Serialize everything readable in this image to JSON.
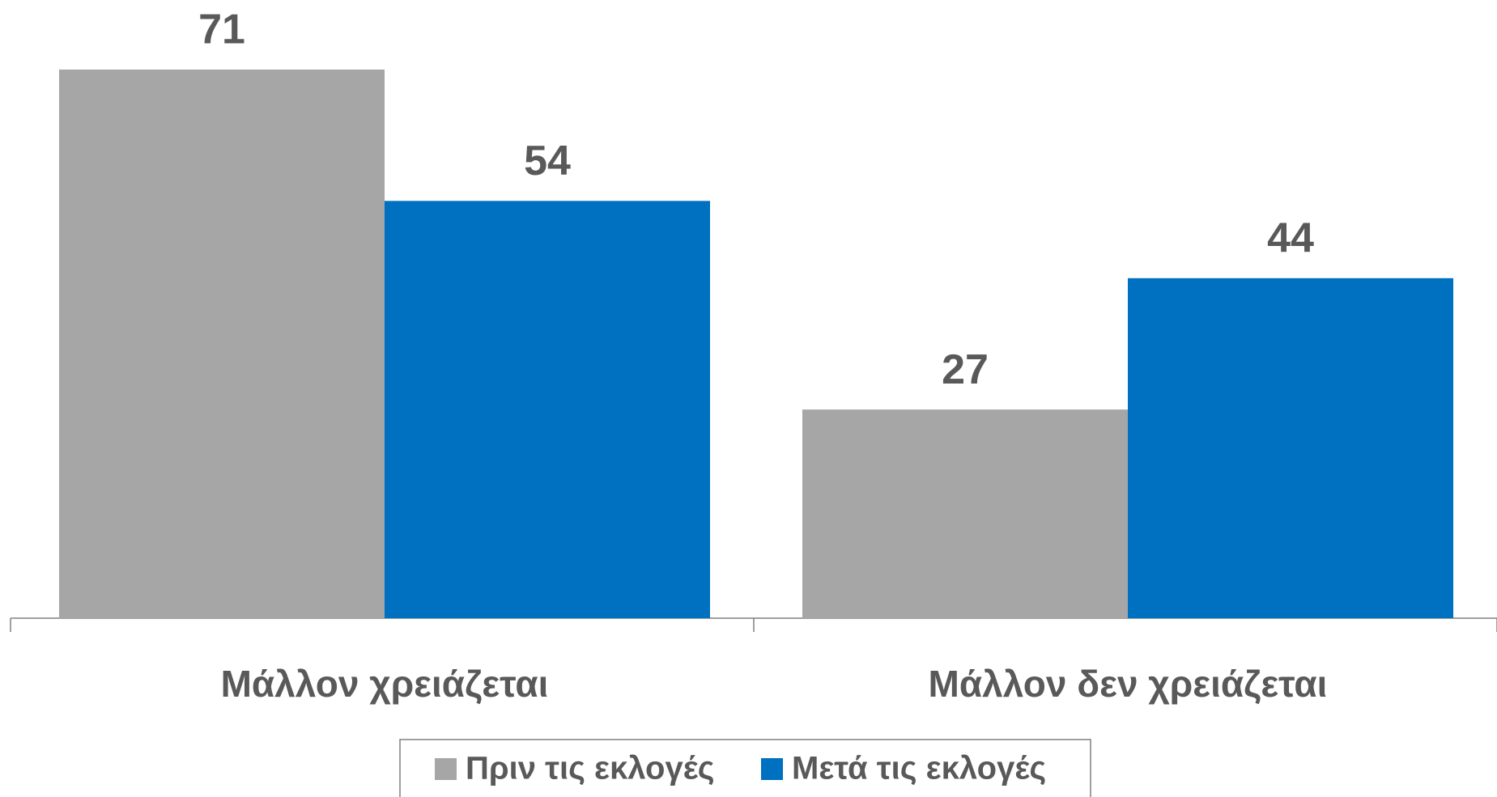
{
  "chart_data": {
    "type": "bar",
    "categories": [
      "Μάλλον χρειάζεται",
      "Μάλλον δεν χρειάζεται"
    ],
    "series": [
      {
        "name": "Πριν τις εκλογές",
        "color": "#a6a6a6",
        "values": [
          71,
          27
        ]
      },
      {
        "name": "Μετά τις εκλογές",
        "color": "#0070c0",
        "values": [
          54,
          44
        ]
      }
    ],
    "legend": "bottom"
  }
}
